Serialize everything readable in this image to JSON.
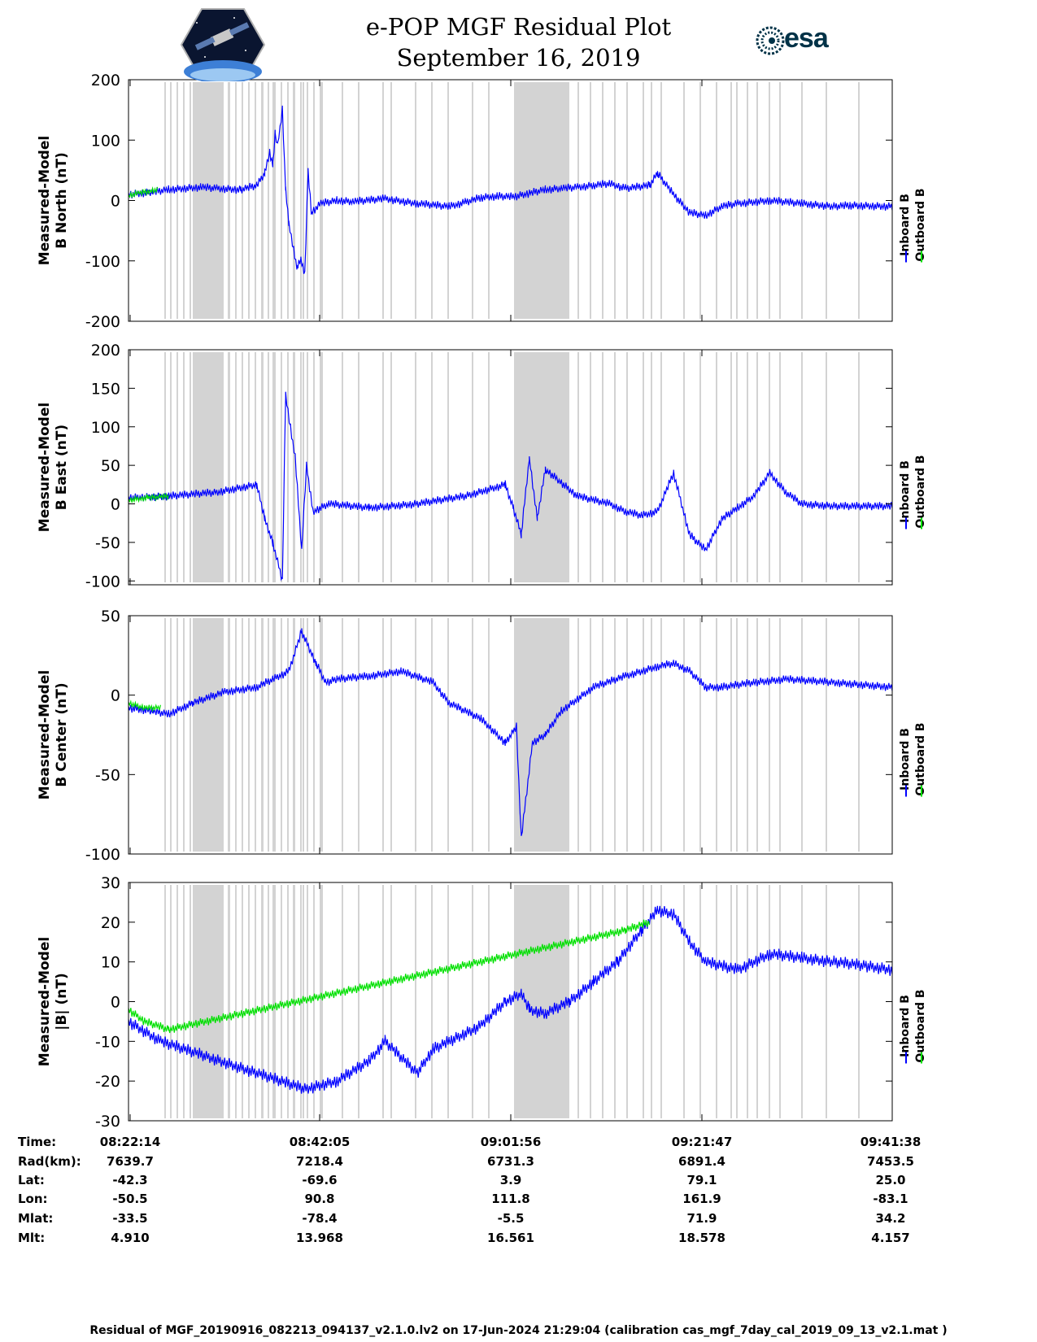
{
  "title": {
    "line1": "e-POP MGF Residual Plot",
    "line2": "September 16, 2019"
  },
  "logos": {
    "left": "cassiope-mission-logo",
    "right": "esa-logo",
    "right_text": "esa"
  },
  "colors": {
    "inboard": "#0000ff",
    "outboard": "#00e000",
    "gap_shading": "#d3d3d3",
    "axes": "#000000"
  },
  "legend": {
    "inboard": "Inboard B",
    "outboard": "Outboard B"
  },
  "chart_data": [
    {
      "type": "line",
      "ylabel": [
        "Measured-Model",
        "B North (nT)"
      ],
      "ylim": [
        -200,
        200
      ],
      "yticks": [
        200,
        100,
        0,
        -100,
        -200
      ],
      "xlim": [
        0,
        4764
      ],
      "x_unit": "seconds after 08:22:14",
      "series": [
        {
          "name": "Inboard B",
          "x": [
            0,
            150,
            250,
            450,
            550,
            700,
            800,
            850,
            880,
            900,
            915,
            930,
            960,
            980,
            1000,
            1030,
            1050,
            1075,
            1100,
            1120,
            1140,
            1200,
            1300,
            1400,
            1600,
            1800,
            2000,
            2100,
            2200,
            2300,
            2400,
            2500,
            2600,
            2700,
            2800,
            2900,
            3000,
            3100,
            3250,
            3300,
            3400,
            3500,
            3600,
            3700,
            3800,
            4000,
            4200,
            4400,
            4500,
            4764
          ],
          "y": [
            10,
            14,
            18,
            22,
            20,
            18,
            25,
            45,
            80,
            60,
            110,
            90,
            150,
            20,
            -40,
            -80,
            -110,
            -100,
            -120,
            50,
            -20,
            -5,
            0,
            -2,
            3,
            -5,
            -10,
            -3,
            5,
            7,
            6,
            12,
            18,
            20,
            22,
            25,
            28,
            20,
            25,
            45,
            10,
            -20,
            -25,
            -10,
            -5,
            0,
            -5,
            -10,
            -8,
            -10
          ]
        },
        {
          "name": "Outboard B",
          "x": [
            0,
            60,
            120,
            180
          ],
          "y": [
            8,
            12,
            15,
            18
          ]
        }
      ]
    },
    {
      "type": "line",
      "ylabel": [
        "Measured-Model",
        "B East (nT)"
      ],
      "ylim": [
        -105,
        200
      ],
      "yticks": [
        200,
        150,
        100,
        50,
        0,
        -50,
        -100
      ],
      "xlim": [
        0,
        4764
      ],
      "x_unit": "seconds after 08:22:14",
      "series": [
        {
          "name": "Inboard B",
          "x": [
            0,
            250,
            550,
            800,
            850,
            900,
            960,
            980,
            1010,
            1040,
            1080,
            1110,
            1150,
            1250,
            1500,
            1800,
            2100,
            2350,
            2400,
            2450,
            2500,
            2550,
            2600,
            2800,
            3000,
            3100,
            3200,
            3300,
            3400,
            3500,
            3600,
            3700,
            3800,
            3900,
            4000,
            4100,
            4200,
            4400,
            4764
          ],
          "y": [
            8,
            10,
            15,
            25,
            -20,
            -50,
            -100,
            140,
            100,
            60,
            -60,
            50,
            -10,
            0,
            -5,
            0,
            10,
            25,
            -5,
            -40,
            60,
            -20,
            45,
            10,
            0,
            -10,
            -15,
            -10,
            40,
            -40,
            -60,
            -20,
            -5,
            10,
            40,
            15,
            0,
            -3,
            -3
          ]
        },
        {
          "name": "Outboard B",
          "x": [
            0,
            120,
            250
          ],
          "y": [
            5,
            8,
            10
          ]
        }
      ]
    },
    {
      "type": "line",
      "ylabel": [
        "Measured-Model",
        "B Center (nT)"
      ],
      "ylim": [
        -100,
        50
      ],
      "yticks": [
        50,
        0,
        -50,
        -100
      ],
      "xlim": [
        0,
        4764
      ],
      "x_unit": "seconds after 08:22:14",
      "series": [
        {
          "name": "Inboard B",
          "x": [
            0,
            150,
            250,
            400,
            600,
            800,
            900,
            1000,
            1080,
            1170,
            1230,
            1300,
            1500,
            1700,
            1900,
            2000,
            2200,
            2350,
            2420,
            2450,
            2520,
            2600,
            2700,
            2900,
            3100,
            3300,
            3400,
            3500,
            3600,
            3700,
            3900,
            4100,
            4400,
            4764
          ],
          "y": [
            -8,
            -10,
            -12,
            -5,
            2,
            5,
            10,
            15,
            40,
            20,
            8,
            10,
            12,
            15,
            8,
            -5,
            -15,
            -30,
            -20,
            -90,
            -30,
            -25,
            -10,
            5,
            12,
            18,
            20,
            15,
            5,
            5,
            8,
            10,
            8,
            5
          ]
        },
        {
          "name": "Outboard B",
          "x": [
            0,
            100,
            200
          ],
          "y": [
            -5,
            -8,
            -8
          ]
        }
      ]
    },
    {
      "type": "line",
      "ylabel": [
        "Measured-Model",
        "|B| (nT)"
      ],
      "ylim": [
        -30,
        30
      ],
      "yticks": [
        30,
        20,
        10,
        0,
        -10,
        -20,
        -30
      ],
      "xlim": [
        0,
        4764
      ],
      "x_unit": "seconds after 08:22:14",
      "series": [
        {
          "name": "Inboard B",
          "x": [
            0,
            200,
            500,
            800,
            1100,
            1300,
            1500,
            1600,
            1800,
            1900,
            2000,
            2200,
            2350,
            2450,
            2500,
            2600,
            2750,
            2900,
            3050,
            3200,
            3300,
            3400,
            3500,
            3600,
            3800,
            4000,
            4200,
            4400,
            4600,
            4764
          ],
          "y": [
            -5,
            -10,
            -14,
            -18,
            -22,
            -20,
            -15,
            -10,
            -18,
            -12,
            -10,
            -6,
            0,
            2,
            -2,
            -3,
            0,
            5,
            10,
            18,
            23,
            22,
            15,
            10,
            8,
            12,
            11,
            10,
            9,
            8
          ]
        },
        {
          "name": "Outboard B",
          "x": [
            0,
            100,
            250,
            3100,
            3250
          ],
          "y": [
            -2,
            -5,
            -7,
            18,
            20
          ]
        }
      ]
    }
  ],
  "bottom_table": {
    "row_labels": [
      "Time:",
      "Rad(km):",
      "Lat:",
      "Lon:",
      "Mlat:",
      "Mlt:"
    ],
    "columns": [
      [
        "08:22:14",
        "7639.7",
        "-42.3",
        "-50.5",
        "-33.5",
        "4.910"
      ],
      [
        "08:42:05",
        "7218.4",
        "-69.6",
        "90.8",
        "-78.4",
        "13.968"
      ],
      [
        "09:01:56",
        "6731.3",
        "3.9",
        "111.8",
        "-5.5",
        "16.561"
      ],
      [
        "09:21:47",
        "6891.4",
        "79.1",
        "161.9",
        "71.9",
        "18.578"
      ],
      [
        "09:41:38",
        "7453.5",
        "25.0",
        "-83.1",
        "34.2",
        "4.157"
      ]
    ]
  },
  "footer": "Residual of MGF_20190916_082213_094137_v2.1.0.lv2 on 17-Jun-2024 21:29:04 (calibration cas_mgf_7day_cal_2019_09_13_v2.1.mat )"
}
